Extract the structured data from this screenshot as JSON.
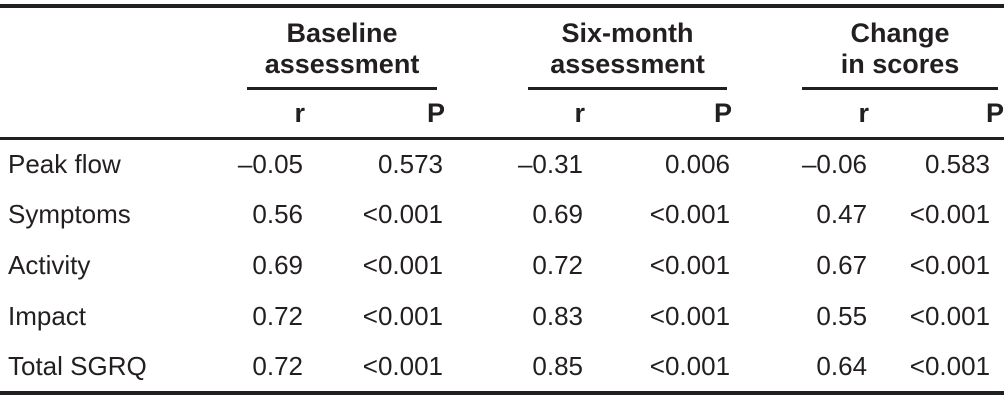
{
  "figure": {
    "background_color": "#ffffff",
    "text_color": "#231f20",
    "rule_color": "#231f20"
  },
  "table": {
    "groups": [
      {
        "line1": "Baseline",
        "line2": "assessment",
        "r_label": "r",
        "p_label": "P"
      },
      {
        "line1": "Six-month",
        "line2": "assessment",
        "r_label": "r",
        "p_label": "P"
      },
      {
        "line1": "Change",
        "line2": "in scores",
        "r_label": "r",
        "p_label": "P"
      }
    ],
    "rows": [
      {
        "label": "Peak flow",
        "values": [
          "–0.05",
          "0.573",
          "–0.31",
          "0.006",
          "–0.06",
          "0.583"
        ]
      },
      {
        "label": "Symptoms",
        "values": [
          "0.56",
          "<0.001",
          "0.69",
          "<0.001",
          "0.47",
          "<0.001"
        ]
      },
      {
        "label": "Activity",
        "values": [
          "0.69",
          "<0.001",
          "0.72",
          "<0.001",
          "0.67",
          "<0.001"
        ]
      },
      {
        "label": "Impact",
        "values": [
          "0.72",
          "<0.001",
          "0.83",
          "<0.001",
          "0.55",
          "<0.001"
        ]
      },
      {
        "label": "Total SGRQ",
        "values": [
          "0.72",
          "<0.001",
          "0.85",
          "<0.001",
          "0.64",
          "<0.001"
        ]
      }
    ]
  },
  "chart_data": {
    "type": "table",
    "column_groups": [
      "Baseline assessment",
      "Six-month assessment",
      "Change in scores"
    ],
    "columns": [
      "",
      "r",
      "P",
      "r",
      "P",
      "r",
      "P"
    ],
    "rows": [
      [
        "Peak flow",
        "–0.05",
        "0.573",
        "–0.31",
        "0.006",
        "–0.06",
        "0.583"
      ],
      [
        "Symptoms",
        "0.56",
        "<0.001",
        "0.69",
        "<0.001",
        "0.47",
        "<0.001"
      ],
      [
        "Activity",
        "0.69",
        "<0.001",
        "0.72",
        "<0.001",
        "0.67",
        "<0.001"
      ],
      [
        "Impact",
        "0.72",
        "<0.001",
        "0.83",
        "<0.001",
        "0.55",
        "<0.001"
      ],
      [
        "Total SGRQ",
        "0.72",
        "<0.001",
        "0.85",
        "<0.001",
        "0.64",
        "<0.001"
      ]
    ]
  }
}
